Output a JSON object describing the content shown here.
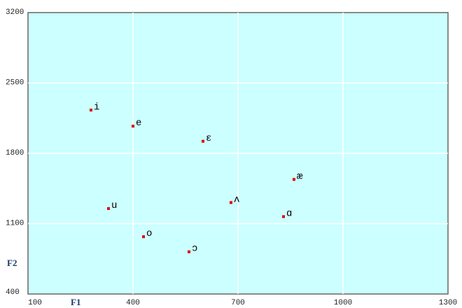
{
  "chart_data": {
    "type": "scatter",
    "xlabel": "F1",
    "ylabel": "F2",
    "point_labels": [
      "i",
      "e",
      "ɛ",
      "æ",
      "ʌ",
      "ɑ",
      "u",
      "o",
      "ɔ"
    ],
    "x": [
      280,
      400,
      600,
      860,
      680,
      830,
      330,
      430,
      560
    ],
    "values": [
      2230,
      2070,
      1920,
      1540,
      1310,
      1170,
      1250,
      970,
      820
    ],
    "color": "#e00000",
    "xlim": [
      100,
      1300
    ],
    "xticks": [
      100,
      400,
      700,
      1000,
      1300
    ],
    "ylim": [
      400,
      3200
    ],
    "yticks": [
      400,
      1100,
      1800,
      2500,
      3200
    ],
    "grid": true
  }
}
